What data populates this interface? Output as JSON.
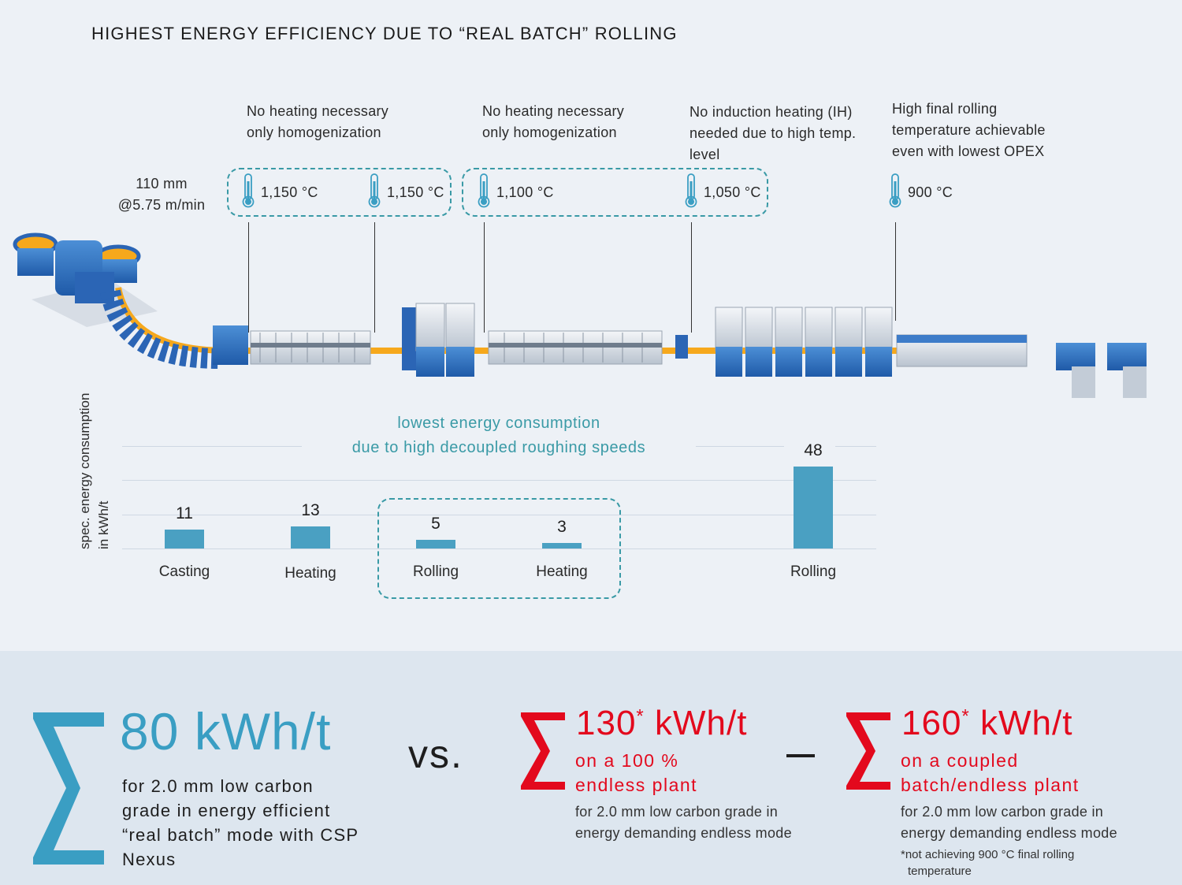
{
  "title": "HIGHEST ENERGY EFFICIENCY DUE TO “REAL BATCH” ROLLING",
  "casting_info": {
    "line1": "110 mm",
    "line2": "@5.75 m/min"
  },
  "notes": [
    {
      "line1": "No heating necessary",
      "line2": "only homogenization",
      "line3": ""
    },
    {
      "line1": "No heating necessary",
      "line2": "only homogenization",
      "line3": ""
    },
    {
      "line1": "No induction heating (IH)",
      "line2": "needed due to high temp.",
      "line3": "level"
    },
    {
      "line1": "High final rolling",
      "line2": "temperature achievable",
      "line3": "even with lowest OPEX"
    }
  ],
  "temperatures": [
    "1,150 °C",
    "1,150 °C",
    "1,100 °C",
    "1,050 °C",
    "900 °C"
  ],
  "chart_data": {
    "type": "bar",
    "ylabel_line1": "spec. energy consumption",
    "ylabel_line2": "in kWh/t",
    "annotation_line1": "lowest energy consumption",
    "annotation_line2": "due to high decoupled roughing speeds",
    "categories": [
      "Casting",
      "Heating",
      "Rolling",
      "Heating",
      "Rolling"
    ],
    "values": [
      11,
      13,
      5,
      3,
      48
    ],
    "ylim": [
      0,
      48
    ],
    "color": "#4aa0c2"
  },
  "summary": {
    "main_value": "80 kWh/t",
    "main_desc": [
      "for 2.0 mm low carbon",
      "grade in energy efficient",
      "“real batch” mode with CSP",
      "Nexus"
    ],
    "vs": "vs.",
    "dash": "–",
    "sigma": "∑",
    "alt1": {
      "value": "130",
      "star": "*",
      "unit": "kWh/t",
      "sub1": "on a 100 %",
      "sub2": "endless plant",
      "desc1": "for 2.0 mm low carbon grade in",
      "desc2": "energy demanding endless mode"
    },
    "alt2": {
      "value": "160",
      "star": "*",
      "unit": "kWh/t",
      "sub1": "on a coupled",
      "sub2": "batch/endless plant",
      "desc1": "for 2.0 mm low carbon grade in",
      "desc2": "energy demanding endless mode",
      "foot1": "*not achieving 900 °C final rolling",
      "foot2": "temperature"
    }
  },
  "colors": {
    "teal": "#3a9aa6",
    "blue": "#3a9ec3",
    "red": "#e3091d"
  }
}
